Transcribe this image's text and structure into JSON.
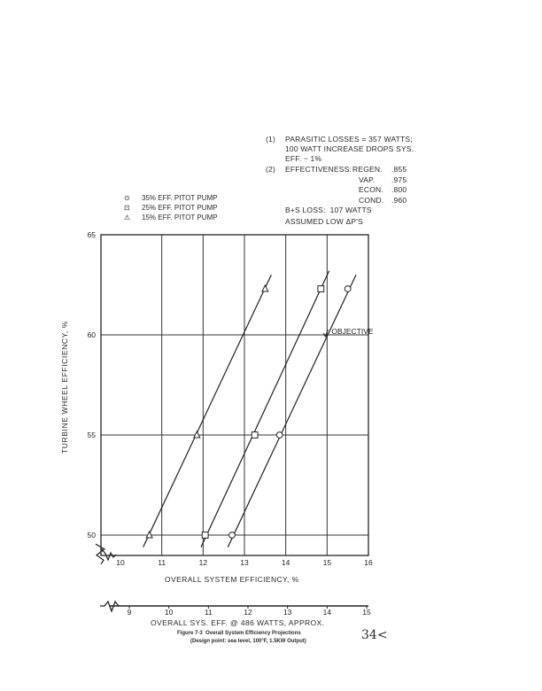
{
  "notes": {
    "n1_num": "(1)",
    "n1_line1": "PARASITIC LOSSES = 357 WATTS;",
    "n1_line2": "100 WATT INCREASE DROPS SYS.",
    "n1_line3": "EFF. ~ 1%",
    "n2_num": "(2)",
    "n2_head": "EFFECTIVENESS:",
    "effectiveness": [
      {
        "label": "REGEN.",
        "value": ".855"
      },
      {
        "label": "VAP.",
        "value": ".975"
      },
      {
        "label": "ECON.",
        "value": ".800"
      },
      {
        "label": "COND.",
        "value": ".960"
      }
    ],
    "bs_loss": "B+S LOSS:  107 WATTS",
    "assumed": "ASSUMED LOW ΔP'S"
  },
  "legend": [
    {
      "symbol": "⊙",
      "label": "35% EFF. PITOT PUMP"
    },
    {
      "symbol": "⊡",
      "label": "25% EFF. PITOT PUMP"
    },
    {
      "symbol": "⚠",
      "label": "15% EFF. PITOT PUMP"
    }
  ],
  "chart_data": {
    "type": "line",
    "xlabel": "OVERALL SYSTEM EFFICIENCY, %",
    "ylabel": "TURBINE WHEEL EFFICIENCY, %",
    "xlim": [
      10,
      16
    ],
    "ylim": [
      50,
      65
    ],
    "x_ticks": [
      "10",
      "11",
      "12",
      "13",
      "14",
      "15",
      "16"
    ],
    "y_ticks": [
      "50",
      "55",
      "60",
      "65"
    ],
    "grid": true,
    "series": [
      {
        "name": "15% EFF. PITOT PUMP",
        "marker": "triangle",
        "points": [
          [
            10.7,
            50
          ],
          [
            11.85,
            55
          ],
          [
            13.5,
            62.3
          ]
        ],
        "line": [
          [
            10.55,
            49.4
          ],
          [
            13.65,
            63.0
          ]
        ]
      },
      {
        "name": "25% EFF. PITOT PUMP",
        "marker": "square",
        "points": [
          [
            12.05,
            50
          ],
          [
            13.25,
            55
          ],
          [
            14.85,
            62.3
          ]
        ],
        "line": [
          [
            11.95,
            49.4
          ],
          [
            15.05,
            63.2
          ]
        ]
      },
      {
        "name": "35% EFF. PITOT PUMP",
        "marker": "circle",
        "points": [
          [
            12.7,
            50
          ],
          [
            13.85,
            55
          ],
          [
            15.5,
            62.3
          ]
        ],
        "line": [
          [
            12.6,
            49.4
          ],
          [
            15.7,
            63.0
          ]
        ]
      }
    ],
    "annotation": {
      "text": "OBJECTIVE",
      "x": 15,
      "y": 60
    },
    "secondary_axis": {
      "label": "OVERALL SYS. EFF. @ 486 WATTS, APPROX.",
      "ticks": [
        "9",
        "10",
        "11",
        "12",
        "13",
        "14",
        "15"
      ],
      "xlim": [
        9,
        15
      ]
    }
  },
  "caption": {
    "line1": "Figure 7-3  Overall System Efficiency Projections",
    "line2": "(Design point: sea level, 100°F, 1.5KW Output)"
  },
  "page_number": "34<"
}
